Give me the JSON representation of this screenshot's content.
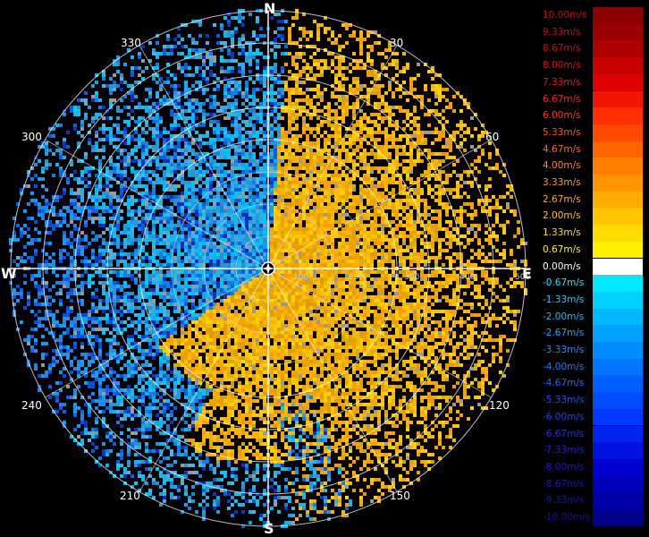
{
  "compass": {
    "north": "N",
    "south": "S",
    "east": "E",
    "west": "W"
  },
  "bearings": [
    "330",
    "30",
    "60",
    "300",
    "240",
    "120",
    "210",
    "150"
  ],
  "range_rings": [
    "100",
    "200",
    "300",
    "400",
    "500"
  ],
  "legend": {
    "entries": [
      {
        "label": "10.00m/s",
        "color": "#8b0000",
        "text_color": "#c81010"
      },
      {
        "label": "9.33m/s",
        "color": "#9c0000",
        "text_color": "#c81010"
      },
      {
        "label": "8.67m/s",
        "color": "#b00000",
        "text_color": "#d01010"
      },
      {
        "label": "8.00m/s",
        "color": "#c80000",
        "text_color": "#e01010"
      },
      {
        "label": "7.33m/s",
        "color": "#e00000",
        "text_color": "#f01515"
      },
      {
        "label": "6.67m/s",
        "color": "#f21500",
        "text_color": "#ff2020"
      },
      {
        "label": "6.00m/s",
        "color": "#ff3000",
        "text_color": "#ff3a20"
      },
      {
        "label": "5.33m/s",
        "color": "#ff4a00",
        "text_color": "#ff5020"
      },
      {
        "label": "4.67m/s",
        "color": "#ff6400",
        "text_color": "#ff6a20"
      },
      {
        "label": "4.00m/s",
        "color": "#ff7e00",
        "text_color": "#ff8420"
      },
      {
        "label": "3.33m/s",
        "color": "#ff9500",
        "text_color": "#ff9a20"
      },
      {
        "label": "2.67m/s",
        "color": "#ffac00",
        "text_color": "#ffae20"
      },
      {
        "label": "2.00m/s",
        "color": "#ffc400",
        "text_color": "#ffc420"
      },
      {
        "label": "1.33m/s",
        "color": "#ffdc00",
        "text_color": "#ffdc20"
      },
      {
        "label": "0.67m/s",
        "color": "#fff000",
        "text_color": "#fff020"
      },
      {
        "label": "0.00m/s",
        "color": "#ffffff",
        "text_color": "#ffffff"
      },
      {
        "label": "-0.67m/s",
        "color": "#00e8ff",
        "text_color": "#20e8ff"
      },
      {
        "label": "-1.33m/s",
        "color": "#00d0ff",
        "text_color": "#20d0ff"
      },
      {
        "label": "-2.00m/s",
        "color": "#00b8ff",
        "text_color": "#20baff"
      },
      {
        "label": "-2.67m/s",
        "color": "#00a2ff",
        "text_color": "#20a6ff"
      },
      {
        "label": "-3.33m/s",
        "color": "#008cff",
        "text_color": "#2090ff"
      },
      {
        "label": "-4.00m/s",
        "color": "#0076ff",
        "text_color": "#207cff"
      },
      {
        "label": "-4.67m/s",
        "color": "#0060ff",
        "text_color": "#2066ff"
      },
      {
        "label": "-5.33m/s",
        "color": "#004cff",
        "text_color": "#2052ff"
      },
      {
        "label": "-6.00m/s",
        "color": "#0038ff",
        "text_color": "#2040ff"
      },
      {
        "label": "-6.67m/s",
        "color": "#0024f0",
        "text_color": "#2030f0"
      },
      {
        "label": "-7.33m/s",
        "color": "#0012e0",
        "text_color": "#1a24e0"
      },
      {
        "label": "-8.00m/s",
        "color": "#0000d0",
        "text_color": "#1a1ad0"
      },
      {
        "label": "-8.67m/s",
        "color": "#0000bc",
        "text_color": "#1818c0"
      },
      {
        "label": "-9.33m/s",
        "color": "#0000a8",
        "text_color": "#1616b0"
      },
      {
        "label": "-10.00m/s",
        "color": "#00008c",
        "text_color": "#1414a0"
      }
    ]
  }
}
